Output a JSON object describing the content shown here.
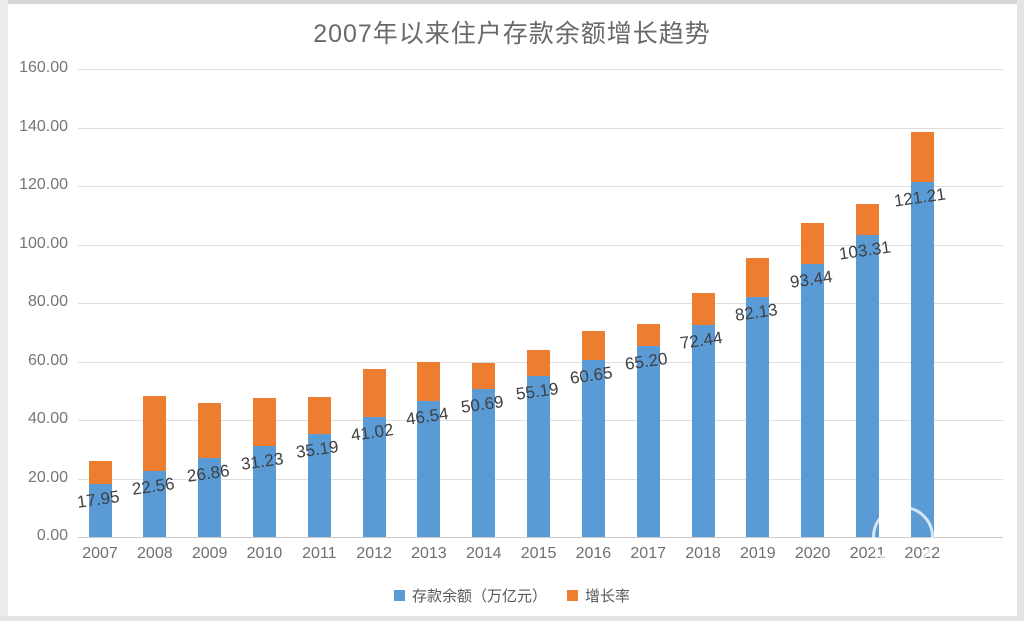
{
  "chart_data": {
    "type": "bar",
    "stacked": true,
    "title": "2007年以来住户存款余额增长趋势",
    "categories": [
      "2007",
      "2008",
      "2009",
      "2010",
      "2011",
      "2012",
      "2013",
      "2014",
      "2015",
      "2016",
      "2017",
      "2018",
      "2019",
      "2020",
      "2021",
      "2022"
    ],
    "series": [
      {
        "name": "存款余额（万亿元）",
        "color": "#5B9BD5",
        "values": [
          17.95,
          22.56,
          26.86,
          31.23,
          35.19,
          41.02,
          46.54,
          50.69,
          55.19,
          60.65,
          65.2,
          72.44,
          82.13,
          93.44,
          103.31,
          121.21
        ],
        "data_labels": [
          "17.95",
          "22.56",
          "26.86",
          "31.23",
          "35.19",
          "41.02",
          "46.54",
          "50.69",
          "55.19",
          "60.65",
          "65.20",
          "72.44",
          "82.13",
          "93.44",
          "103.31",
          "121.21"
        ]
      },
      {
        "name": "增长率",
        "color": "#ED7D31",
        "values": [
          8.0,
          25.68,
          19.06,
          16.27,
          12.68,
          16.57,
          13.46,
          8.92,
          8.88,
          9.89,
          7.5,
          11.1,
          13.38,
          13.77,
          10.56,
          17.33
        ],
        "data_labels": []
      }
    ],
    "y_ticks": [
      "0.00",
      "20.00",
      "40.00",
      "60.00",
      "80.00",
      "100.00",
      "120.00",
      "140.00",
      "160.00"
    ],
    "ylim": [
      0,
      160
    ],
    "grid": true,
    "legend_position": "bottom"
  }
}
